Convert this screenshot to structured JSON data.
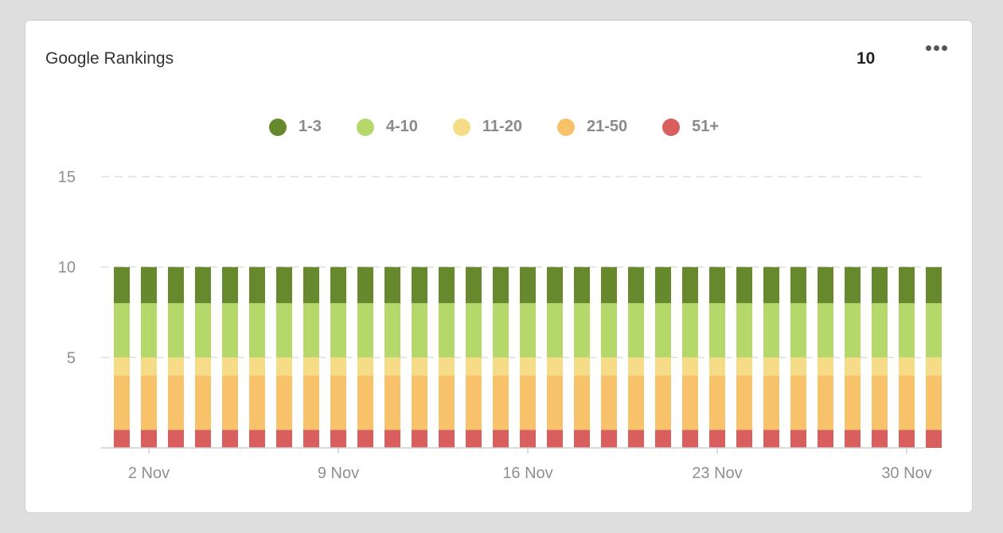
{
  "widget": {
    "title": "Google Rankings",
    "total": "10",
    "menu_icon": "more-horizontal-icon"
  },
  "chart_data": {
    "type": "bar",
    "stacked": true,
    "x": [
      "1 Nov",
      "2 Nov",
      "3 Nov",
      "4 Nov",
      "5 Nov",
      "6 Nov",
      "7 Nov",
      "8 Nov",
      "9 Nov",
      "10 Nov",
      "11 Nov",
      "12 Nov",
      "13 Nov",
      "14 Nov",
      "15 Nov",
      "16 Nov",
      "17 Nov",
      "18 Nov",
      "19 Nov",
      "20 Nov",
      "21 Nov",
      "22 Nov",
      "23 Nov",
      "24 Nov",
      "25 Nov",
      "26 Nov",
      "27 Nov",
      "28 Nov",
      "29 Nov",
      "30 Nov",
      "1 Dec"
    ],
    "x_tick_labels": [
      {
        "label": "2 Nov",
        "x": "2 Nov"
      },
      {
        "label": "9 Nov",
        "x": "9 Nov"
      },
      {
        "label": "16 Nov",
        "x": "16 Nov"
      },
      {
        "label": "23 Nov",
        "x": "23 Nov"
      },
      {
        "label": "30 Nov",
        "x": "30 Nov"
      }
    ],
    "series": [
      {
        "name": "51+",
        "color": "#d95f5f",
        "values": [
          1,
          1,
          1,
          1,
          1,
          1,
          1,
          1,
          1,
          1,
          1,
          1,
          1,
          1,
          1,
          1,
          1,
          1,
          1,
          1,
          1,
          1,
          1,
          1,
          1,
          1,
          1,
          1,
          1,
          1,
          1
        ]
      },
      {
        "name": "21-50",
        "color": "#f8c26a",
        "values": [
          3,
          3,
          3,
          3,
          3,
          3,
          3,
          3,
          3,
          3,
          3,
          3,
          3,
          3,
          3,
          3,
          3,
          3,
          3,
          3,
          3,
          3,
          3,
          3,
          3,
          3,
          3,
          3,
          3,
          3,
          3
        ]
      },
      {
        "name": "11-20",
        "color": "#f6dc86",
        "values": [
          1,
          1,
          1,
          1,
          1,
          1,
          1,
          1,
          1,
          1,
          1,
          1,
          1,
          1,
          1,
          1,
          1,
          1,
          1,
          1,
          1,
          1,
          1,
          1,
          1,
          1,
          1,
          1,
          1,
          1,
          1
        ]
      },
      {
        "name": "4-10",
        "color": "#b6d76a",
        "values": [
          3,
          3,
          3,
          3,
          3,
          3,
          3,
          3,
          3,
          3,
          3,
          3,
          3,
          3,
          3,
          3,
          3,
          3,
          3,
          3,
          3,
          3,
          3,
          3,
          3,
          3,
          3,
          3,
          3,
          3,
          3
        ]
      },
      {
        "name": "1-3",
        "color": "#67892e",
        "values": [
          2,
          2,
          2,
          2,
          2,
          2,
          2,
          2,
          2,
          2,
          2,
          2,
          2,
          2,
          2,
          2,
          2,
          2,
          2,
          2,
          2,
          2,
          2,
          2,
          2,
          2,
          2,
          2,
          2,
          2,
          2
        ]
      }
    ],
    "legend_order": [
      "1-3",
      "4-10",
      "11-20",
      "21-50",
      "51+"
    ],
    "legend_position": "top-center",
    "ylim": [
      0,
      15
    ],
    "yticks": [
      5,
      10,
      15
    ],
    "grid": "horizontal-dashed",
    "xlabel": "",
    "ylabel": ""
  }
}
